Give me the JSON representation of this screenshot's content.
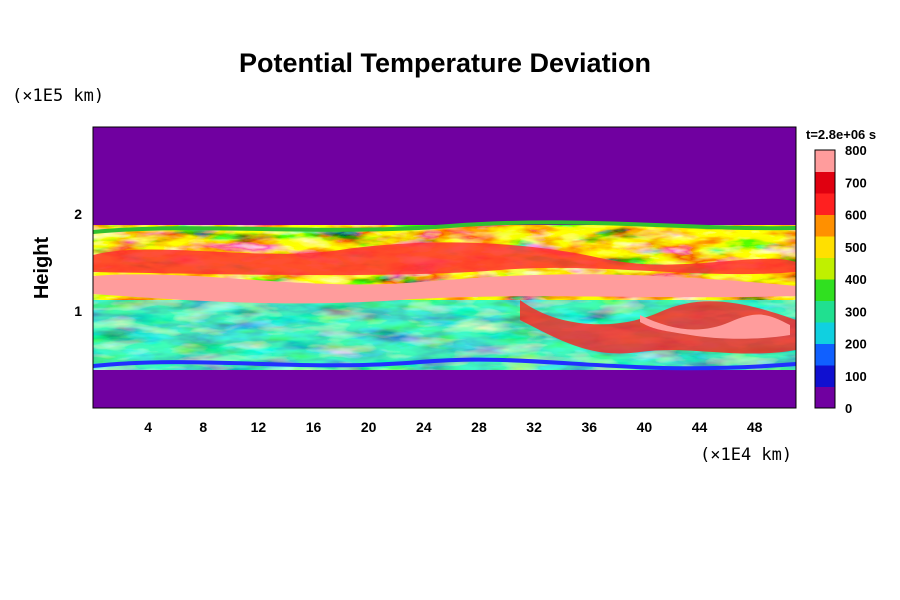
{
  "chart_data": {
    "type": "heatmap",
    "title": "Potential Temperature Deviation",
    "ylabel": "Height",
    "x_unit": "(×1E4 km)",
    "y_unit": "(×1E5 km)",
    "time_label": "t=2.8e+06 s",
    "xlim": [
      0,
      51
    ],
    "ylim": [
      0,
      2.9
    ],
    "x_ticks": [
      4,
      8,
      12,
      16,
      20,
      24,
      28,
      32,
      36,
      40,
      44,
      48
    ],
    "y_ticks": [
      1,
      2
    ],
    "colorbar": {
      "min": 0,
      "max": 800,
      "ticks": [
        0,
        100,
        200,
        300,
        400,
        500,
        600,
        700,
        800
      ]
    },
    "field_description_bands": [
      {
        "y_from": 1.9,
        "y_to": 2.9,
        "value": 0
      },
      {
        "y_from": 1.2,
        "y_to": 1.3,
        "value": 800
      },
      {
        "y_from": 0.4,
        "y_to": 0,
        "value": 0
      }
    ]
  },
  "colors": {
    "background_field": "#7000a0",
    "colorbar_top": "#ff9c9c"
  }
}
